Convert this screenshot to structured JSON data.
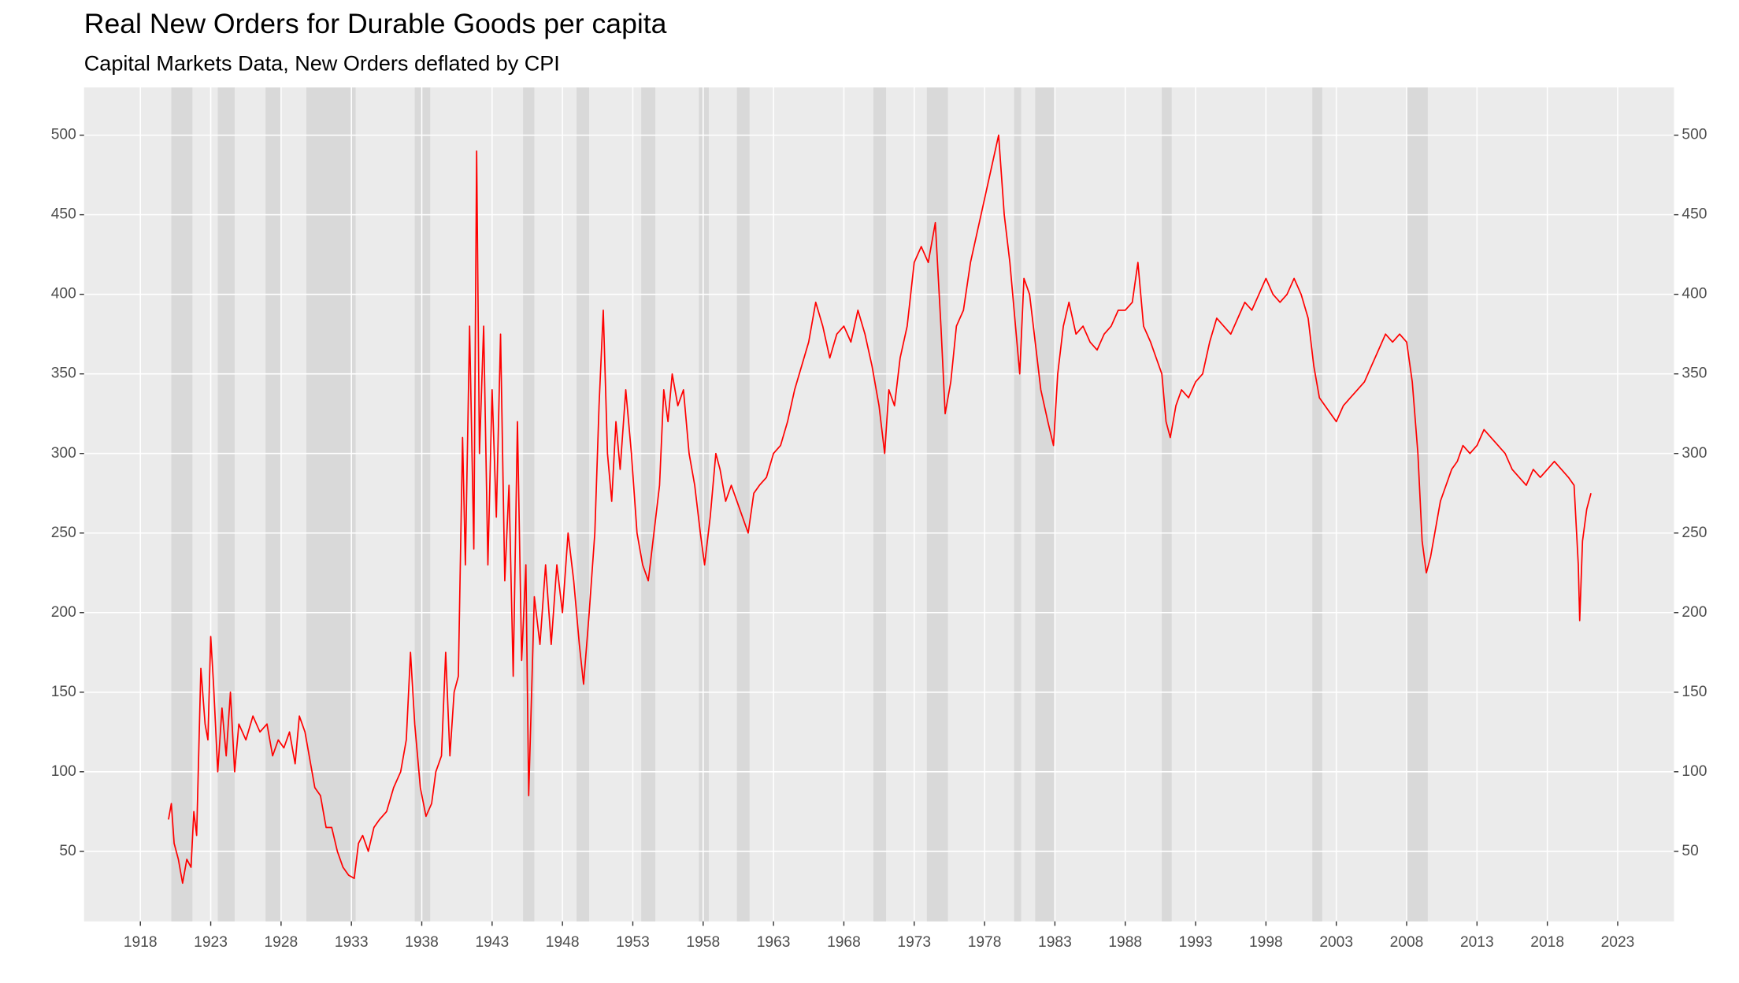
{
  "chart_data": {
    "type": "line",
    "title": "Real New Orders for Durable Goods per capita",
    "subtitle": "Capital Markets Data, New Orders deflated by CPI",
    "xlim": [
      1914,
      2027
    ],
    "xticks": [
      1918,
      1923,
      1928,
      1933,
      1938,
      1943,
      1948,
      1953,
      1958,
      1963,
      1968,
      1973,
      1978,
      1983,
      1988,
      1993,
      1998,
      2003,
      2008,
      2013,
      2018,
      2023
    ],
    "ylim": [
      6,
      530
    ],
    "yticks": [
      50,
      100,
      150,
      200,
      250,
      300,
      350,
      400,
      450,
      500
    ],
    "grid": true,
    "recession_color": "#d9d9d9",
    "recessions": [
      [
        1920.2,
        1921.7
      ],
      [
        1923.5,
        1924.7
      ],
      [
        1926.9,
        1928.0
      ],
      [
        1929.8,
        1933.3
      ],
      [
        1937.5,
        1938.6
      ],
      [
        1945.2,
        1946.0
      ],
      [
        1949.0,
        1949.9
      ],
      [
        1953.6,
        1954.6
      ],
      [
        1957.7,
        1958.4
      ],
      [
        1960.4,
        1961.3
      ],
      [
        1970.1,
        1971.0
      ],
      [
        1973.9,
        1975.4
      ],
      [
        1980.1,
        1980.6
      ],
      [
        1981.6,
        1983.0
      ],
      [
        1990.6,
        1991.3
      ],
      [
        2001.3,
        2002.0
      ],
      [
        2008.0,
        2009.5
      ]
    ],
    "series": [
      {
        "color": "#ff0000",
        "x": [
          1920.0,
          1920.2,
          1920.4,
          1920.7,
          1921.0,
          1921.3,
          1921.6,
          1921.8,
          1922.0,
          1922.3,
          1922.6,
          1922.8,
          1923.0,
          1923.2,
          1923.5,
          1923.8,
          1924.1,
          1924.4,
          1924.7,
          1925.0,
          1925.5,
          1926.0,
          1926.5,
          1927.0,
          1927.4,
          1927.8,
          1928.2,
          1928.6,
          1929.0,
          1929.3,
          1929.7,
          1930.0,
          1930.4,
          1930.8,
          1931.2,
          1931.6,
          1932.0,
          1932.4,
          1932.8,
          1933.2,
          1933.5,
          1933.8,
          1934.2,
          1934.6,
          1935.0,
          1935.5,
          1936.0,
          1936.5,
          1936.9,
          1937.2,
          1937.5,
          1937.9,
          1938.3,
          1938.7,
          1939.0,
          1939.4,
          1939.7,
          1940.0,
          1940.3,
          1940.6,
          1940.9,
          1941.1,
          1941.4,
          1941.7,
          1941.9,
          1942.1,
          1942.4,
          1942.7,
          1943.0,
          1943.3,
          1943.6,
          1943.9,
          1944.2,
          1944.5,
          1944.8,
          1945.1,
          1945.4,
          1945.6,
          1946.0,
          1946.4,
          1946.8,
          1947.2,
          1947.6,
          1948.0,
          1948.4,
          1948.8,
          1949.2,
          1949.5,
          1949.9,
          1950.3,
          1950.6,
          1950.9,
          1951.2,
          1951.5,
          1951.8,
          1952.1,
          1952.5,
          1952.9,
          1953.3,
          1953.7,
          1954.1,
          1954.5,
          1954.9,
          1955.2,
          1955.5,
          1955.8,
          1956.2,
          1956.6,
          1957.0,
          1957.4,
          1957.8,
          1958.1,
          1958.5,
          1958.9,
          1959.2,
          1959.6,
          1960.0,
          1960.4,
          1960.8,
          1961.2,
          1961.6,
          1962.0,
          1962.5,
          1963.0,
          1963.5,
          1964.0,
          1964.5,
          1965.0,
          1965.5,
          1966.0,
          1966.5,
          1967.0,
          1967.5,
          1968.0,
          1968.5,
          1969.0,
          1969.5,
          1970.0,
          1970.5,
          1970.9,
          1971.2,
          1971.6,
          1972.0,
          1972.5,
          1973.0,
          1973.5,
          1974.0,
          1974.5,
          1974.9,
          1975.2,
          1975.6,
          1976.0,
          1976.5,
          1977.0,
          1977.5,
          1978.0,
          1978.5,
          1979.0,
          1979.4,
          1979.8,
          1980.2,
          1980.5,
          1980.8,
          1981.2,
          1981.6,
          1982.0,
          1982.5,
          1982.9,
          1983.2,
          1983.6,
          1984.0,
          1984.5,
          1985.0,
          1985.5,
          1986.0,
          1986.5,
          1987.0,
          1987.5,
          1988.0,
          1988.5,
          1988.9,
          1989.3,
          1989.8,
          1990.2,
          1990.6,
          1990.9,
          1991.2,
          1991.6,
          1992.0,
          1992.5,
          1993.0,
          1993.5,
          1994.0,
          1994.5,
          1995.0,
          1995.5,
          1996.0,
          1996.5,
          1997.0,
          1997.5,
          1998.0,
          1998.5,
          1999.0,
          1999.5,
          2000.0,
          2000.5,
          2001.0,
          2001.4,
          2001.8,
          2002.2,
          2002.6,
          2003.0,
          2003.5,
          2004.0,
          2004.5,
          2005.0,
          2005.5,
          2006.0,
          2006.5,
          2007.0,
          2007.5,
          2008.0,
          2008.4,
          2008.8,
          2009.1,
          2009.4,
          2009.7,
          2010.0,
          2010.4,
          2010.8,
          2011.2,
          2011.6,
          2012.0,
          2012.5,
          2013.0,
          2013.5,
          2014.0,
          2014.5,
          2015.0,
          2015.5,
          2016.0,
          2016.5,
          2017.0,
          2017.5,
          2018.0,
          2018.5,
          2019.0,
          2019.5,
          2019.9,
          2020.2,
          2020.3,
          2020.5,
          2020.8,
          2021.1
        ],
        "values": [
          70,
          80,
          55,
          45,
          30,
          45,
          40,
          75,
          60,
          165,
          130,
          120,
          185,
          155,
          100,
          140,
          110,
          150,
          100,
          130,
          120,
          135,
          125,
          130,
          110,
          120,
          115,
          125,
          105,
          135,
          125,
          110,
          90,
          85,
          65,
          65,
          50,
          40,
          35,
          33,
          55,
          60,
          50,
          65,
          70,
          75,
          90,
          100,
          120,
          175,
          130,
          90,
          72,
          80,
          100,
          110,
          175,
          110,
          150,
          160,
          310,
          230,
          380,
          240,
          490,
          300,
          380,
          230,
          340,
          260,
          375,
          220,
          280,
          160,
          320,
          170,
          230,
          85,
          210,
          180,
          230,
          180,
          230,
          200,
          250,
          220,
          180,
          155,
          200,
          250,
          330,
          390,
          300,
          270,
          320,
          290,
          340,
          300,
          250,
          230,
          220,
          250,
          280,
          340,
          320,
          350,
          330,
          340,
          300,
          280,
          250,
          230,
          260,
          300,
          290,
          270,
          280,
          270,
          260,
          250,
          275,
          280,
          285,
          300,
          305,
          320,
          340,
          355,
          370,
          395,
          380,
          360,
          375,
          380,
          370,
          390,
          375,
          355,
          330,
          300,
          340,
          330,
          360,
          380,
          420,
          430,
          420,
          445,
          380,
          325,
          345,
          380,
          390,
          420,
          440,
          460,
          480,
          500,
          450,
          420,
          380,
          350,
          410,
          400,
          370,
          340,
          320,
          305,
          350,
          380,
          395,
          375,
          380,
          370,
          365,
          375,
          380,
          390,
          390,
          395,
          420,
          380,
          370,
          360,
          350,
          320,
          310,
          330,
          340,
          335,
          345,
          350,
          370,
          385,
          380,
          375,
          385,
          395,
          390,
          400,
          410,
          400,
          395,
          400,
          410,
          400,
          385,
          355,
          335,
          330,
          325,
          320,
          330,
          335,
          340,
          345,
          355,
          365,
          375,
          370,
          375,
          370,
          345,
          300,
          245,
          225,
          235,
          250,
          270,
          280,
          290,
          295,
          305,
          300,
          305,
          315,
          310,
          305,
          300,
          290,
          285,
          280,
          290,
          285,
          290,
          295,
          290,
          285,
          280,
          230,
          195,
          245,
          265,
          275
        ]
      }
    ]
  }
}
